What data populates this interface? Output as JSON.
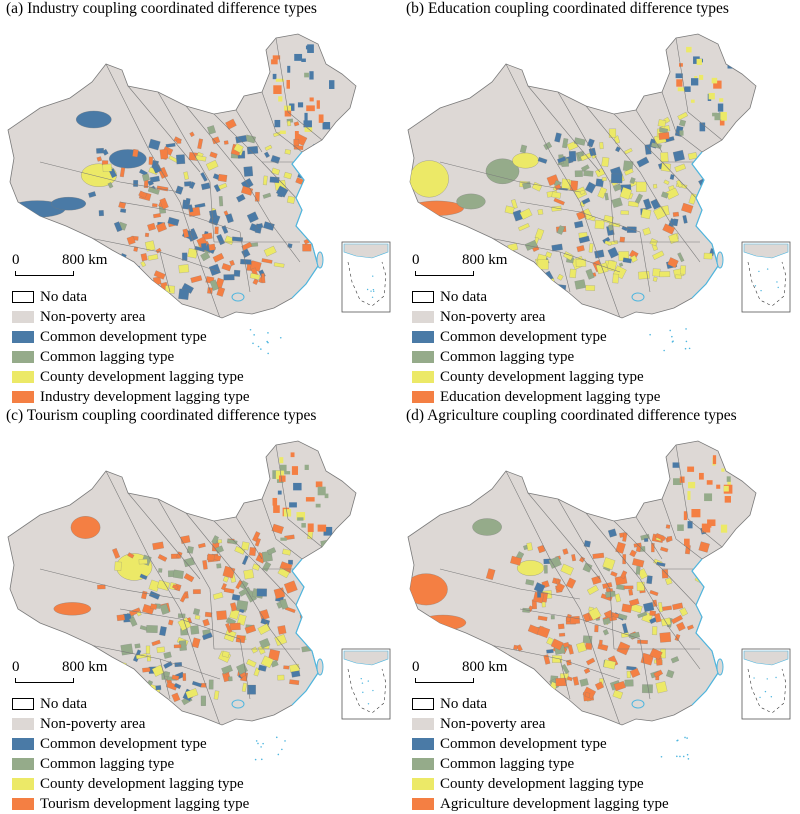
{
  "colors": {
    "no_data": "#ffffff",
    "non_poverty": "#ddd8d5",
    "common_development": "#4a7aa6",
    "common_lagging": "#95ab8a",
    "county_lagging": "#ece967",
    "sector_lagging": "#f47f43",
    "coast": "#4fb6df",
    "border": "#7a7a7a"
  },
  "scale_bar": {
    "zero": "0",
    "distance": "800 km"
  },
  "panels": [
    {
      "title": "(a) Industry coupling coordinated difference types",
      "legend": [
        "No data",
        "Non-poverty area",
        "Common development type",
        "Common lagging type",
        "County development lagging type",
        "Industry development lagging type"
      ]
    },
    {
      "title": "(b) Education coupling coordinated difference types",
      "legend": [
        "No data",
        "Non-poverty area",
        "Common development type",
        "Common lagging type",
        "County development lagging type",
        "Education development lagging type"
      ]
    },
    {
      "title": "(c) Tourism coupling coordinated difference types",
      "legend": [
        "No data",
        "Non-poverty area",
        "Common development type",
        "Common lagging type",
        "County development lagging type",
        "Tourism development lagging type"
      ]
    },
    {
      "title": "(d) Agriculture coupling coordinated difference types",
      "legend": [
        "No data",
        "Non-poverty area",
        "Common development type",
        "Common lagging type",
        "County development lagging type",
        "Agriculture development lagging type"
      ]
    }
  ]
}
